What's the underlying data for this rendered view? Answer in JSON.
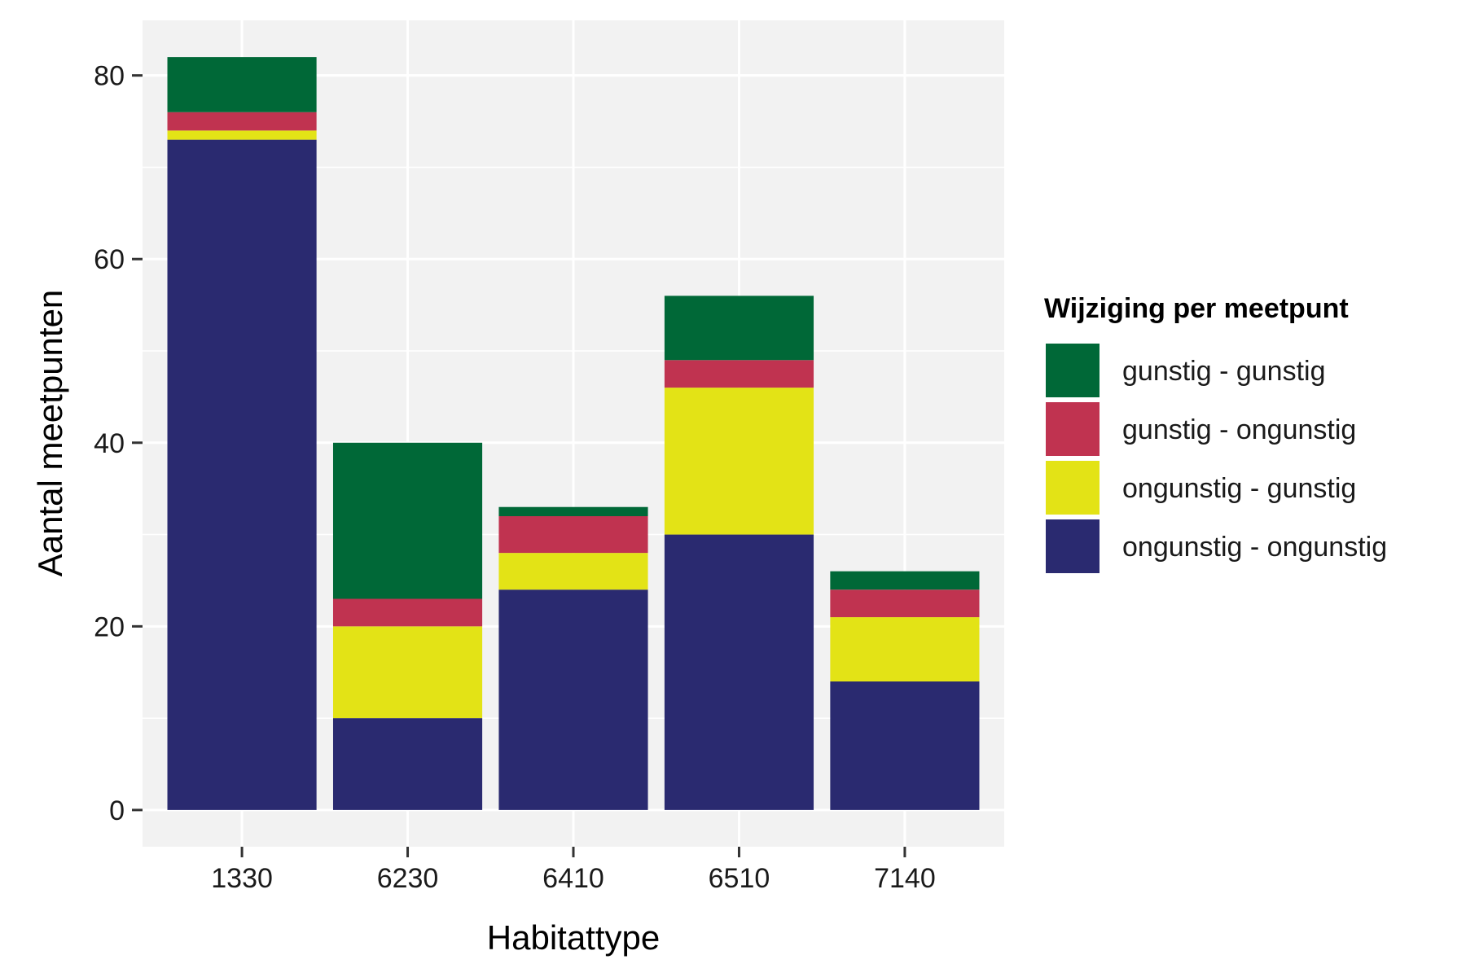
{
  "chart_data": {
    "type": "bar",
    "stacked": true,
    "title": "",
    "xlabel": "Habitattype",
    "ylabel": "Aantal meetpunten",
    "categories": [
      "1330",
      "6230",
      "6410",
      "6510",
      "7140"
    ],
    "ylim": [
      -4,
      86
    ],
    "yticks": [
      0,
      20,
      40,
      60,
      80
    ],
    "grid": true,
    "legend": {
      "title": "Wijziging per meetpunt",
      "position": "right"
    },
    "series": [
      {
        "name": "ongunstig - ongunstig",
        "color": "#2A2A70",
        "values": [
          73,
          10,
          24,
          30,
          14
        ]
      },
      {
        "name": "ongunstig - gunstig",
        "color": "#E3E316",
        "values": [
          1,
          10,
          4,
          16,
          7
        ]
      },
      {
        "name": "gunstig - ongunstig",
        "color": "#C03350",
        "values": [
          2,
          3,
          4,
          3,
          3
        ]
      },
      {
        "name": "gunstig - gunstig",
        "color": "#006837",
        "values": [
          6,
          17,
          1,
          7,
          2
        ]
      }
    ],
    "legend_order": [
      "gunstig - gunstig",
      "gunstig - ongunstig",
      "ongunstig - gunstig",
      "ongunstig - ongunstig"
    ],
    "colors": {
      "panel_background": "#F2F2F2",
      "grid_line": "#FFFFFF"
    }
  }
}
